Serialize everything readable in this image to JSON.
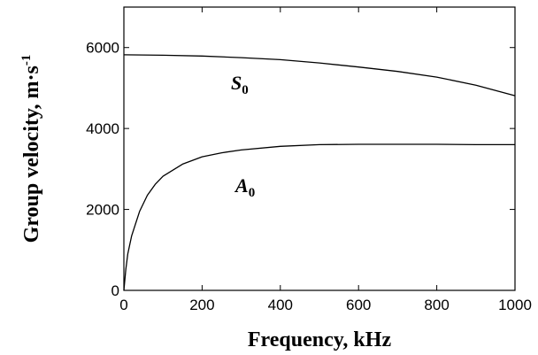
{
  "chart_data": {
    "type": "line",
    "xlabel": "Frequency, kHz",
    "ylabel": "Group velocity, m·s",
    "ylabel_superscript": "-1",
    "xlim": [
      0,
      1000
    ],
    "ylim": [
      0,
      7000
    ],
    "x_ticks": [
      "0",
      "200",
      "400",
      "600",
      "800",
      "1000"
    ],
    "y_ticks": [
      "0",
      "2000",
      "4000",
      "6000"
    ],
    "grid": false,
    "series": [
      {
        "name": "S0",
        "label_main": "S",
        "label_sub": "0",
        "x": [
          0,
          100,
          200,
          300,
          400,
          500,
          600,
          700,
          800,
          900,
          1000
        ],
        "y": [
          5820,
          5810,
          5790,
          5750,
          5700,
          5620,
          5520,
          5410,
          5270,
          5070,
          4810
        ]
      },
      {
        "name": "A0",
        "label_main": "A",
        "label_sub": "0",
        "x": [
          0,
          5,
          10,
          20,
          40,
          60,
          80,
          100,
          150,
          200,
          250,
          300,
          400,
          500,
          600,
          700,
          800,
          900,
          1000
        ],
        "y": [
          0,
          520,
          900,
          1350,
          1950,
          2350,
          2620,
          2820,
          3120,
          3300,
          3400,
          3470,
          3560,
          3600,
          3610,
          3610,
          3610,
          3600,
          3600
        ]
      }
    ]
  }
}
